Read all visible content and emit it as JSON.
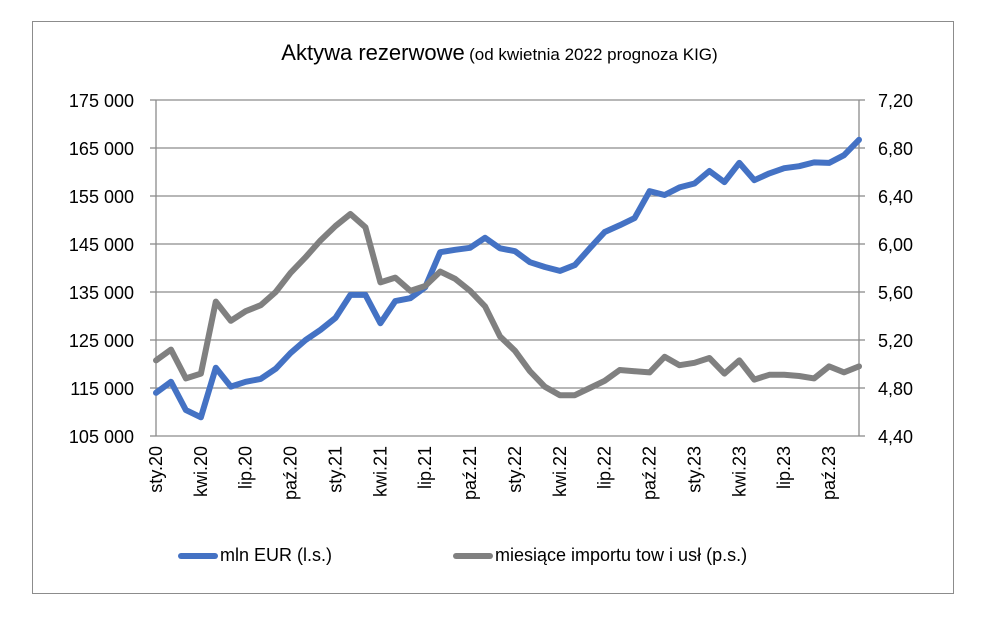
{
  "chart_data": {
    "type": "line",
    "title": "Aktywa rezerwowe",
    "subtitle": "(od kwietnia 2022 prognoza KIG)",
    "xlabel": "",
    "ylabel_left": "",
    "ylabel_right": "",
    "y_left": {
      "min": 105000,
      "max": 175000,
      "step": 10000,
      "ticks": [
        "105 000",
        "115 000",
        "125 000",
        "135 000",
        "145 000",
        "155 000",
        "165 000",
        "175 000"
      ]
    },
    "y_right": {
      "min": 4.4,
      "max": 7.2,
      "step": 0.4,
      "ticks": [
        "4,40",
        "4,80",
        "5,20",
        "5,60",
        "6,00",
        "6,40",
        "6,80",
        "7,20"
      ]
    },
    "x_tick_labels": [
      "sty.20",
      "kwi.20",
      "lip.20",
      "paź.20",
      "sty.21",
      "kwi.21",
      "lip.21",
      "paź.21",
      "sty.22",
      "kwi.22",
      "lip.22",
      "paź.22",
      "sty.23",
      "kwi.23",
      "lip.23",
      "paź.23"
    ],
    "x": [
      "2020-01",
      "2020-02",
      "2020-03",
      "2020-04",
      "2020-05",
      "2020-06",
      "2020-07",
      "2020-08",
      "2020-09",
      "2020-10",
      "2020-11",
      "2020-12",
      "2021-01",
      "2021-02",
      "2021-03",
      "2021-04",
      "2021-05",
      "2021-06",
      "2021-07",
      "2021-08",
      "2021-09",
      "2021-10",
      "2021-11",
      "2021-12",
      "2022-01",
      "2022-02",
      "2022-03",
      "2022-04",
      "2022-05",
      "2022-06",
      "2022-07",
      "2022-08",
      "2022-09",
      "2022-10",
      "2022-11",
      "2022-12",
      "2023-01",
      "2023-02",
      "2023-03",
      "2023-04",
      "2023-05",
      "2023-06",
      "2023-07",
      "2023-08",
      "2023-09",
      "2023-10",
      "2023-11",
      "2023-12"
    ],
    "series": [
      {
        "name": "mln EUR (l.s.)",
        "axis": "left",
        "color": "#4472c4",
        "values": [
          114000,
          116300,
          110400,
          108900,
          119200,
          115300,
          116300,
          116900,
          119000,
          122300,
          125000,
          127100,
          129600,
          134400,
          134400,
          128500,
          133100,
          133700,
          136000,
          143300,
          143800,
          144200,
          146300,
          144100,
          143500,
          141200,
          140200,
          139400,
          140600,
          144100,
          147500,
          148900,
          150400,
          156000,
          155200,
          156800,
          157600,
          160200,
          157900,
          161900,
          158300,
          159700,
          160800,
          161200,
          162000,
          161900,
          163500,
          166700
        ]
      },
      {
        "name": "miesiące importu tow i usł (p.s.)",
        "axis": "right",
        "color": "#808080",
        "values": [
          5.03,
          5.12,
          4.88,
          4.92,
          5.52,
          5.36,
          5.44,
          5.49,
          5.6,
          5.76,
          5.89,
          6.03,
          6.15,
          6.25,
          6.14,
          5.68,
          5.72,
          5.61,
          5.65,
          5.77,
          5.71,
          5.61,
          5.48,
          5.23,
          5.11,
          4.94,
          4.81,
          4.74,
          4.74,
          4.8,
          4.86,
          4.95,
          4.94,
          4.93,
          5.06,
          4.99,
          5.01,
          5.05,
          4.92,
          5.03,
          4.87,
          4.91,
          4.91,
          4.9,
          4.88,
          4.98,
          4.93,
          4.98
        ]
      }
    ],
    "grid": {
      "horizontal": true,
      "vertical": false
    },
    "legend": {
      "position": "bottom"
    }
  },
  "legend": {
    "items": [
      {
        "label": "mln EUR (l.s.)",
        "color": "#4472c4"
      },
      {
        "label": "miesiące importu tow i usł (p.s.)",
        "color": "#808080"
      }
    ]
  },
  "title": {
    "main": "Aktywa rezerwowe",
    "sub": "(od kwietnia 2022 prognoza KIG)"
  }
}
